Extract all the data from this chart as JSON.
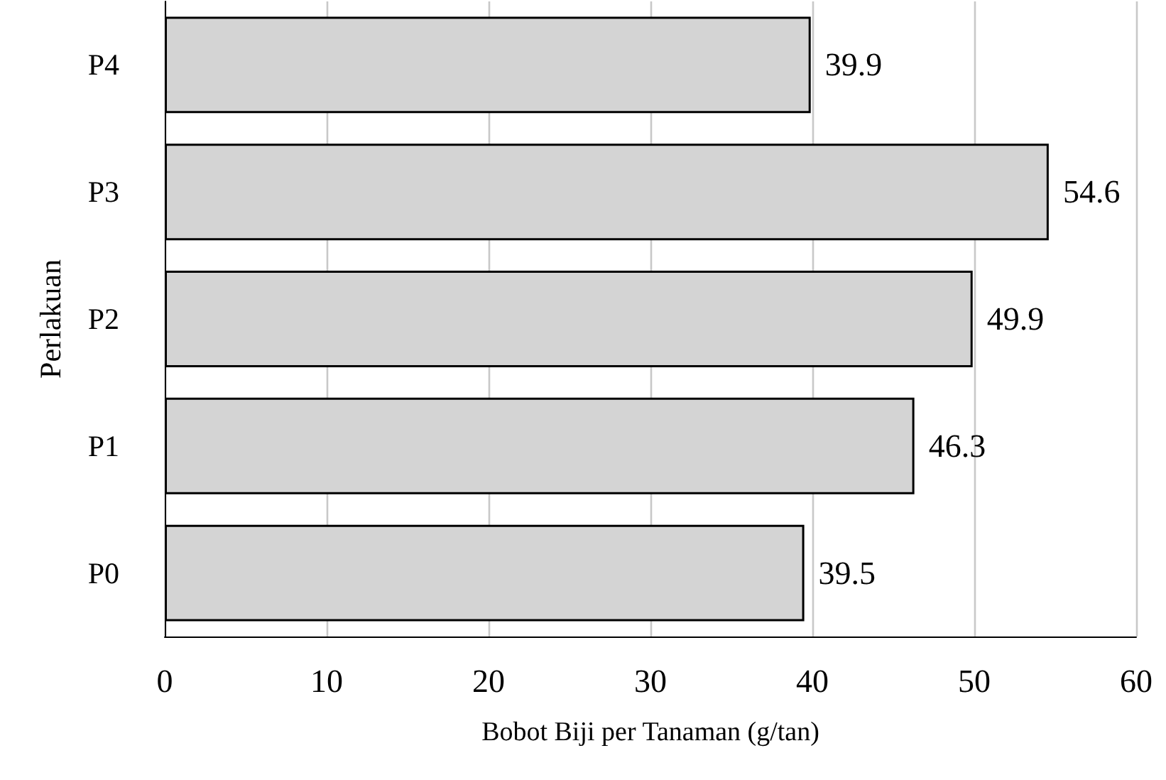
{
  "chart_data": {
    "type": "bar",
    "orientation": "horizontal",
    "xlabel": "Bobot Biji per Tanaman (g/tan)",
    "ylabel": "Perlakuan",
    "categories": [
      "P4",
      "P3",
      "P2",
      "P1",
      "P0"
    ],
    "values": [
      39.9,
      54.6,
      49.9,
      46.3,
      39.5
    ],
    "color": "#d4d4d4",
    "xlim": [
      0,
      60
    ],
    "xticks": [
      0,
      10,
      20,
      30,
      40,
      50,
      60
    ],
    "grid": "x",
    "data_labels": true
  }
}
